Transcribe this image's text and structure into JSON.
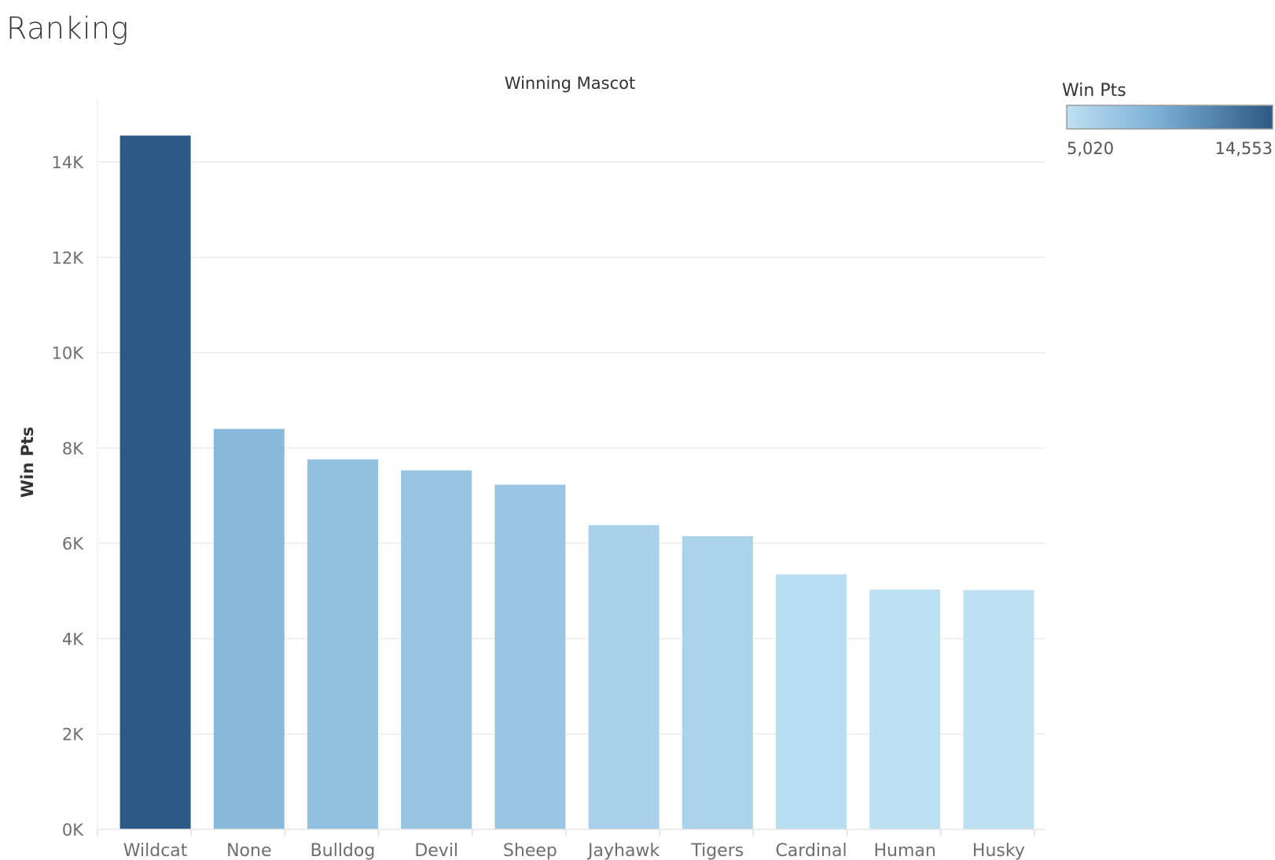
{
  "page": {
    "title": "Ranking"
  },
  "chart_data": {
    "type": "bar",
    "title": "Winning Mascot",
    "xlabel": "",
    "ylabel": "Win Pts",
    "categories": [
      "Wildcat",
      "None",
      "Bulldog",
      "Devil",
      "Sheep",
      "Jayhawk",
      "Tigers",
      "Cardinal",
      "Human",
      "Husky"
    ],
    "values": [
      14553,
      8400,
      7760,
      7530,
      7230,
      6380,
      6150,
      5350,
      5030,
      5020
    ],
    "ylim": [
      0,
      15000
    ],
    "yticks": [
      0,
      2000,
      4000,
      6000,
      8000,
      10000,
      12000,
      14000
    ],
    "ytick_labels": [
      "0K",
      "2K",
      "4K",
      "6K",
      "8K",
      "10K",
      "12K",
      "14K"
    ],
    "grid": true,
    "color_legend": {
      "title": "Win Pts",
      "min_label": "5,020",
      "max_label": "14,553",
      "min_value": 5020,
      "max_value": 14553,
      "min_color": "#bde0f2",
      "max_color": "#2c5985",
      "placement": "top-right"
    }
  }
}
